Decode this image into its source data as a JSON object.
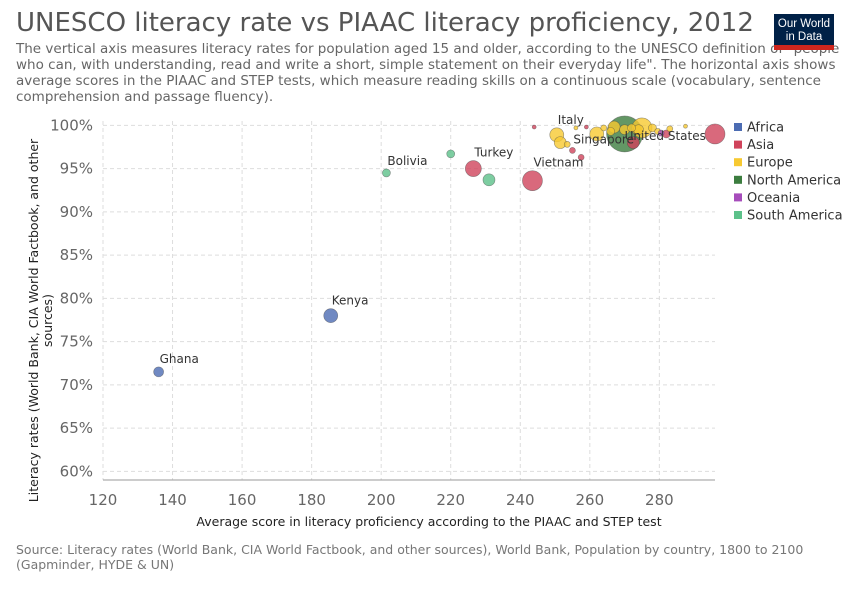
{
  "header": {
    "title": "UNESCO literacy rate vs PIAAC literacy proficiency, 2012",
    "subtitle": "The vertical axis measures literacy rates for population aged 15 and older, according to the UNESCO definition of \"people who can, with understanding, read and write a short, simple statement on their everyday life\". The horizontal axis shows average scores in the PIAAC and STEP tests, which measure reading skills on a continuous scale (vocabulary, sentence comprehension and passage fluency)."
  },
  "logo": {
    "line1": "Our World",
    "line2": "in Data",
    "bg": "#002147",
    "accent": "#ce261e"
  },
  "footer": {
    "source": "Source: Literacy rates (World Bank, CIA World Factbook, and other sources), World Bank, Population by country, 1800 to 2100 (Gapminder, HYDE & UN)"
  },
  "chart_data": {
    "type": "scatter",
    "title": "UNESCO literacy rate vs PIAAC literacy proficiency, 2012",
    "xlabel": "Average score in literacy proficiency according to the PIAAC and STEP test",
    "ylabel": "Literacy rates (World Bank, CIA World Factbook, and other sources)",
    "xlim": [
      120,
      296
    ],
    "ylim": [
      59,
      100.5
    ],
    "x_ticks": [
      120,
      140,
      160,
      180,
      200,
      220,
      240,
      260,
      280
    ],
    "y_ticks": [
      60,
      65,
      70,
      75,
      80,
      85,
      90,
      95,
      100
    ],
    "y_tick_labels": [
      "60%",
      "65%",
      "70%",
      "75%",
      "80%",
      "85%",
      "90%",
      "95%",
      "100%"
    ],
    "grid": true,
    "legend_position": "right",
    "series": [
      {
        "name": "Africa",
        "color": "#4c6cb3",
        "points": [
          {
            "x": 136,
            "y": 71.5,
            "size": 5,
            "label": "Ghana"
          },
          {
            "x": 185.5,
            "y": 78.0,
            "size": 7,
            "label": "Kenya"
          }
        ]
      },
      {
        "name": "Asia",
        "color": "#d0435b",
        "points": [
          {
            "x": 226.5,
            "y": 95.0,
            "size": 8,
            "label": "Turkey"
          },
          {
            "x": 243.5,
            "y": 93.6,
            "size": 10,
            "label": "Vietnam"
          },
          {
            "x": 255,
            "y": 97.1,
            "size": 3,
            "label": "Singapore"
          },
          {
            "x": 257.5,
            "y": 96.3,
            "size": 3,
            "label": ""
          },
          {
            "x": 244,
            "y": 99.8,
            "size": 2,
            "label": ""
          },
          {
            "x": 259,
            "y": 99.8,
            "size": 2,
            "label": ""
          },
          {
            "x": 272.5,
            "y": 98.0,
            "size": 6,
            "label": ""
          },
          {
            "x": 282,
            "y": 99.0,
            "size": 4,
            "label": ""
          },
          {
            "x": 296,
            "y": 99.0,
            "size": 10,
            "label": ""
          }
        ]
      },
      {
        "name": "Europe",
        "color": "#f7c931",
        "points": [
          {
            "x": 250.5,
            "y": 98.9,
            "size": 7,
            "label": "Italy"
          },
          {
            "x": 251.5,
            "y": 98.0,
            "size": 6,
            "label": ""
          },
          {
            "x": 253.5,
            "y": 97.8,
            "size": 3,
            "label": ""
          },
          {
            "x": 256,
            "y": 99.7,
            "size": 2,
            "label": ""
          },
          {
            "x": 262,
            "y": 99.0,
            "size": 7,
            "label": ""
          },
          {
            "x": 264,
            "y": 99.7,
            "size": 3,
            "label": ""
          },
          {
            "x": 266,
            "y": 99.3,
            "size": 4,
            "label": ""
          },
          {
            "x": 267,
            "y": 99.8,
            "size": 6,
            "label": ""
          },
          {
            "x": 270,
            "y": 99.5,
            "size": 5,
            "label": ""
          },
          {
            "x": 272,
            "y": 99.7,
            "size": 4,
            "label": ""
          },
          {
            "x": 274,
            "y": 99.5,
            "size": 5,
            "label": ""
          },
          {
            "x": 275,
            "y": 99.7,
            "size": 10,
            "label": ""
          },
          {
            "x": 278,
            "y": 99.7,
            "size": 4,
            "label": ""
          },
          {
            "x": 279.5,
            "y": 99.3,
            "size": 3,
            "label": ""
          },
          {
            "x": 283,
            "y": 99.6,
            "size": 3,
            "label": ""
          },
          {
            "x": 287.5,
            "y": 99.9,
            "size": 2,
            "label": ""
          }
        ]
      },
      {
        "name": "North America",
        "color": "#3c7d3f",
        "points": [
          {
            "x": 270,
            "y": 99.0,
            "size": 18,
            "label": "United States"
          }
        ]
      },
      {
        "name": "Oceania",
        "color": "#a64dbb",
        "points": [
          {
            "x": 280.5,
            "y": 99.1,
            "size": 3,
            "label": ""
          }
        ]
      },
      {
        "name": "South America",
        "color": "#5cc18a",
        "points": [
          {
            "x": 201.5,
            "y": 94.5,
            "size": 4,
            "label": "Bolivia"
          },
          {
            "x": 220,
            "y": 96.7,
            "size": 4,
            "label": ""
          },
          {
            "x": 231,
            "y": 93.7,
            "size": 6,
            "label": ""
          }
        ]
      }
    ]
  }
}
